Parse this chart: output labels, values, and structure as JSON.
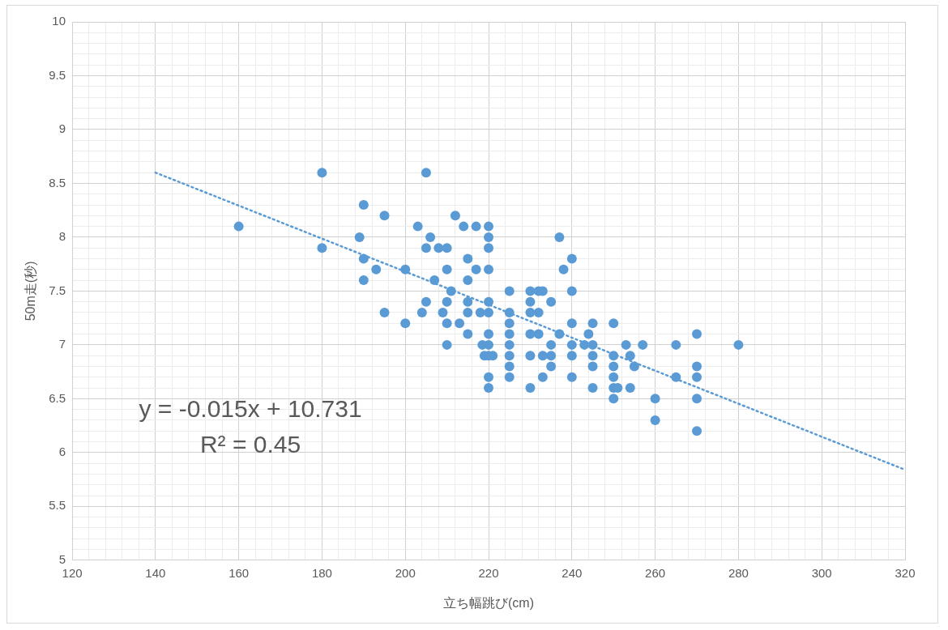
{
  "chart_data": {
    "type": "scatter",
    "xlabel": "立ち幅跳び(cm)",
    "ylabel": "50m走(秒)",
    "xlim": [
      120,
      320
    ],
    "ylim": [
      5,
      10
    ],
    "xticks": [
      120,
      {
        "value": 124,
        "label": null
      },
      {
        "value": 128,
        "label": null
      },
      {
        "value": 132,
        "label": null
      },
      {
        "value": 136,
        "label": null
      },
      140,
      {
        "value": 144,
        "label": null
      },
      {
        "value": 148,
        "label": null
      },
      {
        "value": 152,
        "label": null
      },
      {
        "value": 156,
        "label": null
      },
      160,
      {
        "value": 164,
        "label": null
      },
      {
        "value": 168,
        "label": null
      },
      {
        "value": 172,
        "label": null
      },
      {
        "value": 176,
        "label": null
      },
      180,
      {
        "value": 184,
        "label": null
      },
      {
        "value": 188,
        "label": null
      },
      {
        "value": 192,
        "label": null
      },
      {
        "value": 196,
        "label": null
      },
      200,
      {
        "value": 204,
        "label": null
      },
      {
        "value": 208,
        "label": null
      },
      {
        "value": 212,
        "label": null
      },
      {
        "value": 216,
        "label": null
      },
      220,
      {
        "value": 224,
        "label": null
      },
      {
        "value": 228,
        "label": null
      },
      {
        "value": 232,
        "label": null
      },
      {
        "value": 236,
        "label": null
      },
      240,
      {
        "value": 244,
        "label": null
      },
      {
        "value": 248,
        "label": null
      },
      {
        "value": 252,
        "label": null
      },
      {
        "value": 256,
        "label": null
      },
      260,
      {
        "value": 264,
        "label": null
      },
      {
        "value": 268,
        "label": null
      },
      {
        "value": 272,
        "label": null
      },
      {
        "value": 276,
        "label": null
      },
      280,
      {
        "value": 284,
        "label": null
      },
      {
        "value": 288,
        "label": null
      },
      {
        "value": 292,
        "label": null
      },
      {
        "value": 296,
        "label": null
      },
      300,
      {
        "value": 304,
        "label": null
      },
      {
        "value": 308,
        "label": null
      },
      {
        "value": 312,
        "label": null
      },
      {
        "value": 316,
        "label": null
      },
      320
    ],
    "yticks": [
      5,
      {
        "value": 5.1,
        "label": null
      },
      {
        "value": 5.2,
        "label": null
      },
      {
        "value": 5.3,
        "label": null
      },
      {
        "value": 5.4,
        "label": null
      },
      5.5,
      {
        "value": 5.6,
        "label": null
      },
      {
        "value": 5.7,
        "label": null
      },
      {
        "value": 5.8,
        "label": null
      },
      {
        "value": 5.9,
        "label": null
      },
      6,
      {
        "value": 6.1,
        "label": null
      },
      {
        "value": 6.2,
        "label": null
      },
      {
        "value": 6.3,
        "label": null
      },
      {
        "value": 6.4,
        "label": null
      },
      6.5,
      {
        "value": 6.6,
        "label": null
      },
      {
        "value": 6.7,
        "label": null
      },
      {
        "value": 6.8,
        "label": null
      },
      {
        "value": 6.9,
        "label": null
      },
      7,
      {
        "value": 7.1,
        "label": null
      },
      {
        "value": 7.2,
        "label": null
      },
      {
        "value": 7.3,
        "label": null
      },
      {
        "value": 7.4,
        "label": null
      },
      7.5,
      {
        "value": 7.6,
        "label": null
      },
      {
        "value": 7.7,
        "label": null
      },
      {
        "value": 7.8,
        "label": null
      },
      {
        "value": 7.9,
        "label": null
      },
      8,
      {
        "value": 8.1,
        "label": null
      },
      {
        "value": 8.2,
        "label": null
      },
      {
        "value": 8.3,
        "label": null
      },
      {
        "value": 8.4,
        "label": null
      },
      8.5,
      {
        "value": 8.6,
        "label": null
      },
      {
        "value": 8.7,
        "label": null
      },
      {
        "value": 8.8,
        "label": null
      },
      {
        "value": 8.9,
        "label": null
      },
      9,
      {
        "value": 9.1,
        "label": null
      },
      {
        "value": 9.2,
        "label": null
      },
      {
        "value": 9.3,
        "label": null
      },
      {
        "value": 9.4,
        "label": null
      },
      9.5,
      {
        "value": 9.6,
        "label": null
      },
      {
        "value": 9.7,
        "label": null
      },
      {
        "value": 9.8,
        "label": null
      },
      {
        "value": 9.9,
        "label": null
      },
      10
    ],
    "grid": true,
    "legend": false,
    "marker": "circle",
    "annotations": [
      "y = -0.015x + 10.731",
      "R² = 0.45"
    ],
    "series": [
      {
        "color": "#5b9bd5",
        "x": [
          160,
          180,
          180,
          189,
          190,
          190,
          190,
          193,
          195,
          195,
          200,
          200,
          203,
          205,
          205,
          205,
          204,
          206,
          207,
          208,
          209,
          210,
          210,
          210,
          210,
          210,
          211,
          212,
          213,
          214,
          215,
          215,
          215,
          215,
          215,
          217,
          217,
          218,
          218.5,
          220,
          220,
          220,
          220,
          220,
          220,
          220,
          220,
          220,
          220,
          220,
          219,
          221,
          225,
          225,
          225,
          225,
          225,
          225,
          225,
          225,
          230,
          230,
          230,
          230,
          230,
          230,
          232,
          232,
          232,
          233,
          233,
          233,
          235,
          235,
          235,
          235,
          237,
          237,
          238,
          240,
          240,
          240,
          240,
          240,
          240,
          243,
          244,
          245,
          245,
          245,
          245,
          245,
          250,
          250,
          250,
          250,
          250,
          250,
          251,
          253,
          254,
          255,
          254,
          257,
          260,
          260,
          265,
          265,
          270,
          270,
          270,
          270,
          270,
          280
        ],
        "values": [
          8.1,
          8.6,
          7.9,
          8.0,
          8.3,
          7.8,
          7.6,
          7.7,
          8.2,
          7.3,
          7.7,
          7.2,
          8.1,
          8.6,
          7.9,
          7.4,
          7.3,
          8.0,
          7.6,
          7.9,
          7.3,
          7.9,
          7.7,
          7.4,
          7.2,
          7.0,
          7.5,
          8.2,
          7.2,
          8.1,
          7.8,
          7.6,
          7.4,
          7.3,
          7.1,
          8.1,
          7.7,
          7.3,
          7.0,
          8.1,
          8.0,
          7.9,
          7.7,
          7.4,
          7.3,
          7.1,
          7.0,
          6.9,
          6.7,
          6.6,
          6.9,
          6.9,
          7.5,
          7.3,
          7.2,
          7.1,
          7.0,
          6.9,
          6.8,
          6.7,
          7.5,
          7.4,
          7.3,
          7.1,
          6.9,
          6.6,
          7.5,
          7.3,
          7.1,
          6.9,
          6.7,
          7.5,
          7.4,
          7.0,
          6.9,
          6.8,
          8.0,
          7.1,
          7.7,
          7.8,
          7.5,
          7.2,
          7.0,
          6.9,
          6.7,
          7.0,
          7.1,
          7.0,
          7.2,
          6.9,
          6.8,
          6.6,
          7.2,
          6.9,
          6.8,
          6.7,
          6.6,
          6.5,
          6.6,
          7.0,
          6.9,
          6.8,
          6.6,
          7.0,
          6.5,
          6.3,
          7.0,
          6.7,
          7.1,
          6.8,
          6.7,
          6.5,
          6.2,
          7.0
        ]
      },
      {
        "type": "line",
        "color": "#5b9bd5",
        "marker": "none",
        "line_style": "dotted",
        "x": [
          140,
          320
        ],
        "values": [
          8.6,
          5.84
        ]
      }
    ]
  }
}
